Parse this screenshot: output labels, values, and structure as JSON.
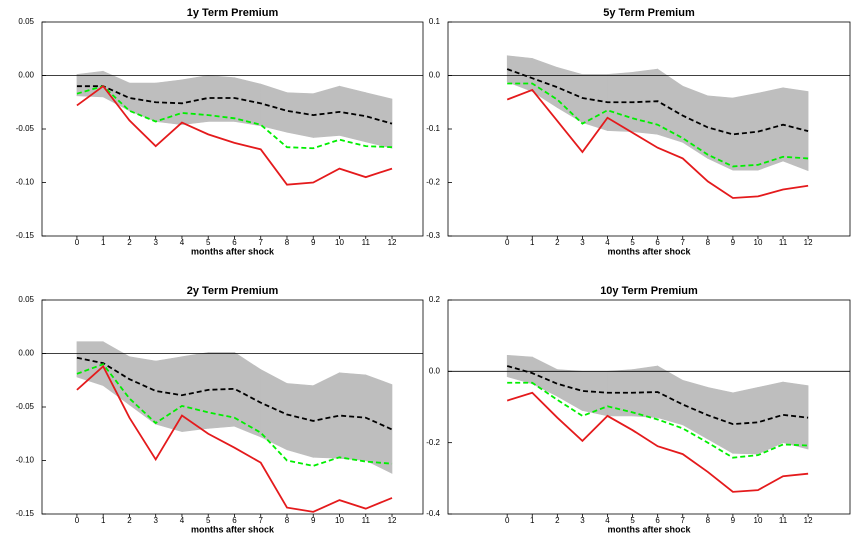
{
  "chart_data": [
    {
      "type": "line",
      "title": "1y Term Premium",
      "xlabel": "months after shock",
      "x": [
        0,
        1,
        2,
        3,
        4,
        5,
        6,
        7,
        8,
        9,
        10,
        11,
        12
      ],
      "xticks": [
        0,
        1,
        2,
        3,
        4,
        5,
        6,
        7,
        8,
        9,
        10,
        11,
        12
      ],
      "xlim": [
        -1.33,
        13.18
      ],
      "ylim": [
        -0.15,
        0.05
      ],
      "yticks": [
        {
          "value": -0.15,
          "label": "-0.15"
        },
        {
          "value": -0.1,
          "label": "-0.10"
        },
        -0.05,
        {
          "value": 0,
          "label": "0.00"
        },
        0.05
      ],
      "hline": 0,
      "band": {
        "color": "#bebebe",
        "upper": [
          0.001,
          0.004,
          -0.007,
          -0.007,
          -0.004,
          0.0,
          -0.002,
          -0.008,
          -0.016,
          -0.017,
          -0.01,
          -0.016,
          -0.022
        ],
        "lower": [
          -0.019,
          -0.02,
          -0.033,
          -0.043,
          -0.046,
          -0.043,
          -0.043,
          -0.047,
          -0.053,
          -0.058,
          -0.056,
          -0.062,
          -0.068
        ]
      },
      "series": [
        {
          "color": "#000000",
          "style": "dashed",
          "values": [
            -0.01,
            -0.01,
            -0.021,
            -0.025,
            -0.026,
            -0.021,
            -0.021,
            -0.026,
            -0.033,
            -0.037,
            -0.034,
            -0.038,
            -0.045
          ]
        },
        {
          "color": "#00ee00",
          "style": "dashed",
          "values": [
            -0.017,
            -0.01,
            -0.033,
            -0.043,
            -0.035,
            -0.037,
            -0.04,
            -0.046,
            -0.067,
            -0.068,
            -0.06,
            -0.066,
            -0.067
          ]
        },
        {
          "color": "#e41a1c",
          "style": "solid",
          "values": [
            -0.028,
            -0.01,
            -0.042,
            -0.066,
            -0.044,
            -0.055,
            -0.063,
            -0.069,
            -0.102,
            -0.1,
            -0.087,
            -0.095,
            -0.087
          ]
        }
      ]
    },
    {
      "type": "line",
      "title": "5y Term Premium",
      "xlabel": "months after shock",
      "x": [
        0,
        1,
        2,
        3,
        4,
        5,
        6,
        7,
        8,
        9,
        10,
        11,
        12
      ],
      "xticks": [
        0,
        1,
        2,
        3,
        4,
        5,
        6,
        7,
        8,
        9,
        10,
        11,
        12
      ],
      "xlim": [
        -2.36,
        13.67
      ],
      "ylim": [
        -0.3,
        0.1
      ],
      "yticks": [
        -0.3,
        -0.2,
        -0.1,
        {
          "value": 0,
          "label": "0.0"
        },
        0.1
      ],
      "hline": 0,
      "band": {
        "color": "#bebebe",
        "upper": [
          0.037,
          0.032,
          0.015,
          0.002,
          0.002,
          0.006,
          0.012,
          -0.02,
          -0.038,
          -0.042,
          -0.033,
          -0.023,
          -0.03
        ],
        "lower": [
          -0.012,
          -0.03,
          -0.06,
          -0.088,
          -0.103,
          -0.105,
          -0.11,
          -0.125,
          -0.155,
          -0.177,
          -0.177,
          -0.16,
          -0.178
        ]
      },
      "series": [
        {
          "color": "#000000",
          "style": "dashed",
          "values": [
            0.012,
            -0.005,
            -0.022,
            -0.042,
            -0.05,
            -0.05,
            -0.048,
            -0.075,
            -0.097,
            -0.11,
            -0.105,
            -0.092,
            -0.104
          ]
        },
        {
          "color": "#00ee00",
          "style": "dashed",
          "values": [
            -0.015,
            -0.015,
            -0.045,
            -0.09,
            -0.065,
            -0.08,
            -0.092,
            -0.117,
            -0.148,
            -0.17,
            -0.167,
            -0.152,
            -0.155
          ]
        },
        {
          "color": "#e41a1c",
          "style": "solid",
          "values": [
            -0.045,
            -0.027,
            -0.085,
            -0.143,
            -0.079,
            -0.107,
            -0.135,
            -0.155,
            -0.198,
            -0.229,
            -0.226,
            -0.213,
            -0.206
          ]
        }
      ]
    },
    {
      "type": "line",
      "title": "2y Term Premium",
      "xlabel": "months after shock",
      "x": [
        0,
        1,
        2,
        3,
        4,
        5,
        6,
        7,
        8,
        9,
        10,
        11,
        12
      ],
      "xticks": [
        0,
        1,
        2,
        3,
        4,
        5,
        6,
        7,
        8,
        9,
        10,
        11,
        12
      ],
      "xlim": [
        -1.33,
        13.18
      ],
      "ylim": [
        -0.15,
        0.05
      ],
      "yticks": [
        {
          "value": -0.15,
          "label": "-0.15"
        },
        {
          "value": -0.1,
          "label": "-0.10"
        },
        -0.05,
        {
          "value": 0,
          "label": "0.00"
        },
        0.05
      ],
      "hline": 0,
      "band": {
        "color": "#bebebe",
        "upper": [
          0.011,
          0.011,
          -0.003,
          -0.007,
          -0.003,
          0.001,
          0.001,
          -0.015,
          -0.028,
          -0.03,
          -0.018,
          -0.02,
          -0.029
        ],
        "lower": [
          -0.022,
          -0.03,
          -0.048,
          -0.066,
          -0.073,
          -0.07,
          -0.068,
          -0.078,
          -0.09,
          -0.097,
          -0.098,
          -0.1,
          -0.112
        ]
      },
      "series": [
        {
          "color": "#000000",
          "style": "dashed",
          "values": [
            -0.004,
            -0.009,
            -0.024,
            -0.035,
            -0.039,
            -0.034,
            -0.033,
            -0.046,
            -0.057,
            -0.063,
            -0.058,
            -0.06,
            -0.071
          ]
        },
        {
          "color": "#00ee00",
          "style": "dashed",
          "values": [
            -0.019,
            -0.01,
            -0.042,
            -0.065,
            -0.049,
            -0.055,
            -0.06,
            -0.074,
            -0.1,
            -0.105,
            -0.097,
            -0.101,
            -0.103
          ]
        },
        {
          "color": "#e41a1c",
          "style": "solid",
          "values": [
            -0.034,
            -0.012,
            -0.06,
            -0.099,
            -0.058,
            -0.075,
            -0.088,
            -0.102,
            -0.144,
            -0.148,
            -0.137,
            -0.145,
            -0.135
          ]
        }
      ]
    },
    {
      "type": "line",
      "title": "10y Term Premium",
      "xlabel": "months after shock",
      "x": [
        0,
        1,
        2,
        3,
        4,
        5,
        6,
        7,
        8,
        9,
        10,
        11,
        12
      ],
      "xticks": [
        0,
        1,
        2,
        3,
        4,
        5,
        6,
        7,
        8,
        9,
        10,
        11,
        12
      ],
      "xlim": [
        -2.36,
        13.67
      ],
      "ylim": [
        -0.4,
        0.2
      ],
      "yticks": [
        -0.4,
        -0.2,
        {
          "value": 0,
          "label": "0.0"
        },
        0.2
      ],
      "hline": 0,
      "band": {
        "color": "#bebebe",
        "upper": [
          0.045,
          0.04,
          0.005,
          0.0,
          0.0,
          0.005,
          0.015,
          -0.025,
          -0.045,
          -0.06,
          -0.045,
          -0.03,
          -0.04
        ],
        "lower": [
          -0.015,
          -0.035,
          -0.07,
          -0.11,
          -0.125,
          -0.125,
          -0.13,
          -0.15,
          -0.19,
          -0.23,
          -0.232,
          -0.2,
          -0.218
        ]
      },
      "series": [
        {
          "color": "#000000",
          "style": "dashed",
          "values": [
            0.015,
            -0.005,
            -0.035,
            -0.055,
            -0.06,
            -0.06,
            -0.058,
            -0.093,
            -0.123,
            -0.148,
            -0.143,
            -0.122,
            -0.13
          ]
        },
        {
          "color": "#00ee00",
          "style": "dashed",
          "values": [
            -0.032,
            -0.032,
            -0.08,
            -0.125,
            -0.098,
            -0.115,
            -0.135,
            -0.16,
            -0.2,
            -0.242,
            -0.235,
            -0.205,
            -0.208
          ]
        },
        {
          "color": "#e41a1c",
          "style": "solid",
          "values": [
            -0.082,
            -0.06,
            -0.13,
            -0.195,
            -0.125,
            -0.165,
            -0.21,
            -0.232,
            -0.282,
            -0.338,
            -0.333,
            -0.294,
            -0.287
          ]
        }
      ]
    }
  ]
}
